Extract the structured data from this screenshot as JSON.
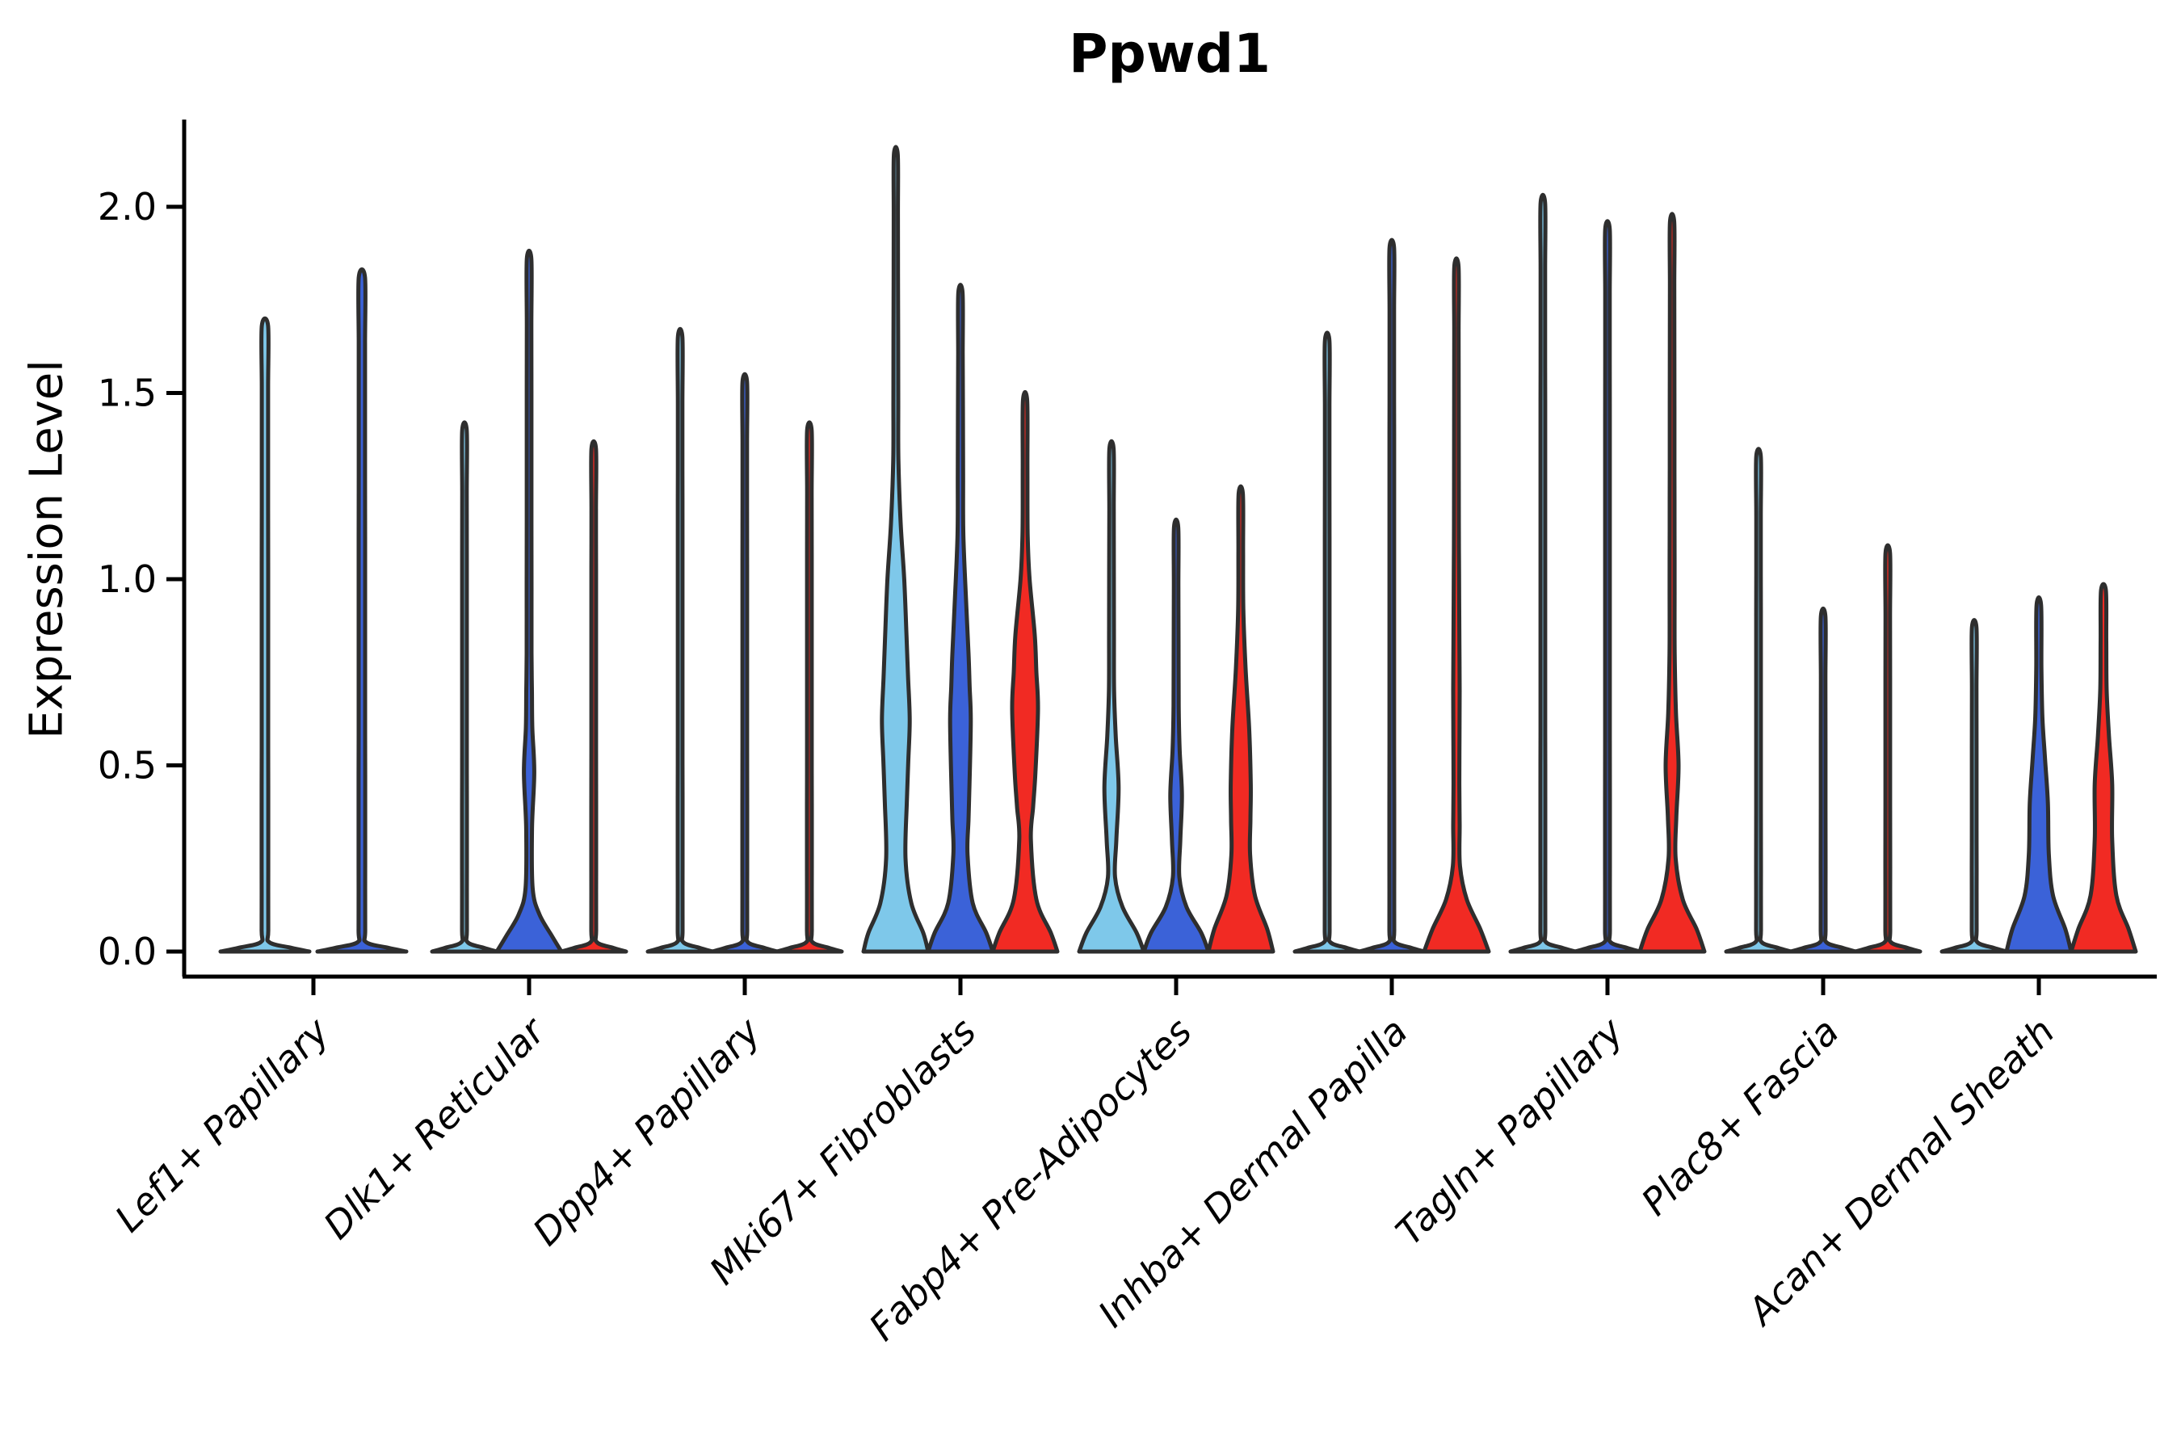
{
  "title": "Ppwd1",
  "axes": {
    "ylabel": "Expression Level",
    "ytick_labels": [
      "0.0",
      "0.5",
      "1.0",
      "1.5",
      "2.0"
    ]
  },
  "colors": {
    "background": "#ffffff",
    "axis": "#000000",
    "outline": "#2e2e2e",
    "series": [
      "#7ec8ea",
      "#3b62d8",
      "#f12a23"
    ]
  },
  "chart_data": {
    "type": "violin",
    "title": "Ppwd1",
    "xlabel": "",
    "ylabel": "Expression Level",
    "ylim": [
      -0.07,
      2.3
    ],
    "yticks": [
      0.0,
      0.5,
      1.0,
      1.5,
      2.0
    ],
    "grid": false,
    "legend": "none",
    "categories": [
      "Lef1+ Papillary",
      "Dlk1+ Reticular",
      "Dpp4+ Papillary",
      "Mki67+ Fibroblasts",
      "Fabp4+ Pre-Adipocytes",
      "Inhba+ Dermal Papilla",
      "Tagln+ Papillary",
      "Plac8+ Fascia",
      "Acan+ Dermal Sheath"
    ],
    "note": "profile = [expression_value, half_width_fraction] pairs; color = index into colors.series",
    "groups": [
      {
        "category": "Lef1+ Papillary",
        "violins": [
          {
            "color": 0,
            "max": 1.68,
            "profile": [
              [
                0,
                1.0
              ],
              [
                0.01,
                0.6
              ],
              [
                0.025,
                0.1
              ],
              [
                0.06,
                0.075
              ],
              [
                1.68,
                0.07
              ]
            ]
          },
          {
            "color": 1,
            "max": 1.81,
            "profile": [
              [
                0,
                1.0
              ],
              [
                0.01,
                0.6
              ],
              [
                0.025,
                0.1
              ],
              [
                0.06,
                0.075
              ],
              [
                1.81,
                0.07
              ]
            ]
          }
        ]
      },
      {
        "category": "Dlk1+ Reticular",
        "violins": [
          {
            "color": 0,
            "max": 1.4,
            "profile": [
              [
                0,
                1.0
              ],
              [
                0.01,
                0.6
              ],
              [
                0.025,
                0.1
              ],
              [
                0.06,
                0.075
              ],
              [
                1.4,
                0.07
              ]
            ]
          },
          {
            "color": 1,
            "max": 1.86,
            "profile": [
              [
                0,
                1.0
              ],
              [
                0.04,
                0.72
              ],
              [
                0.1,
                0.32
              ],
              [
                0.17,
                0.11
              ],
              [
                0.33,
                0.09
              ],
              [
                0.48,
                0.16
              ],
              [
                0.6,
                0.1
              ],
              [
                0.8,
                0.075
              ],
              [
                1.86,
                0.07
              ]
            ]
          },
          {
            "color": 2,
            "max": 1.35,
            "profile": [
              [
                0,
                1.0
              ],
              [
                0.01,
                0.6
              ],
              [
                0.025,
                0.1
              ],
              [
                0.06,
                0.075
              ],
              [
                1.35,
                0.07
              ]
            ]
          }
        ]
      },
      {
        "category": "Dpp4+ Papillary",
        "violins": [
          {
            "color": 0,
            "max": 1.65,
            "profile": [
              [
                0,
                1.0
              ],
              [
                0.01,
                0.6
              ],
              [
                0.025,
                0.1
              ],
              [
                0.06,
                0.075
              ],
              [
                1.65,
                0.07
              ]
            ]
          },
          {
            "color": 1,
            "max": 1.53,
            "profile": [
              [
                0,
                1.0
              ],
              [
                0.01,
                0.6
              ],
              [
                0.025,
                0.1
              ],
              [
                0.06,
                0.075
              ],
              [
                1.53,
                0.07
              ]
            ]
          },
          {
            "color": 2,
            "max": 1.4,
            "profile": [
              [
                0,
                1.0
              ],
              [
                0.01,
                0.6
              ],
              [
                0.025,
                0.1
              ],
              [
                0.06,
                0.075
              ],
              [
                1.4,
                0.07
              ]
            ]
          }
        ]
      },
      {
        "category": "Mki67+ Fibroblasts",
        "violins": [
          {
            "color": 0,
            "max": 2.14,
            "profile": [
              [
                0,
                1.0
              ],
              [
                0.05,
                0.85
              ],
              [
                0.13,
                0.48
              ],
              [
                0.25,
                0.3
              ],
              [
                0.4,
                0.34
              ],
              [
                0.62,
                0.43
              ],
              [
                0.85,
                0.33
              ],
              [
                1.0,
                0.26
              ],
              [
                1.15,
                0.15
              ],
              [
                1.32,
                0.08
              ],
              [
                2.14,
                0.06
              ]
            ]
          },
          {
            "color": 1,
            "max": 1.77,
            "profile": [
              [
                0,
                1.0
              ],
              [
                0.05,
                0.8
              ],
              [
                0.13,
                0.38
              ],
              [
                0.26,
                0.22
              ],
              [
                0.45,
                0.28
              ],
              [
                0.62,
                0.32
              ],
              [
                0.8,
                0.25
              ],
              [
                0.95,
                0.17
              ],
              [
                1.12,
                0.09
              ],
              [
                1.77,
                0.065
              ]
            ]
          },
          {
            "color": 2,
            "max": 1.48,
            "profile": [
              [
                0,
                1.0
              ],
              [
                0.05,
                0.8
              ],
              [
                0.14,
                0.35
              ],
              [
                0.3,
                0.18
              ],
              [
                0.48,
                0.32
              ],
              [
                0.65,
                0.4
              ],
              [
                0.85,
                0.3
              ],
              [
                1.0,
                0.14
              ],
              [
                1.12,
                0.08
              ],
              [
                1.48,
                0.065
              ]
            ]
          }
        ]
      },
      {
        "category": "Fabp4+ Pre-Adipocytes",
        "violins": [
          {
            "color": 0,
            "max": 1.35,
            "profile": [
              [
                0,
                1.0
              ],
              [
                0.05,
                0.78
              ],
              [
                0.12,
                0.34
              ],
              [
                0.2,
                0.11
              ],
              [
                0.3,
                0.15
              ],
              [
                0.44,
                0.22
              ],
              [
                0.58,
                0.13
              ],
              [
                0.7,
                0.08
              ],
              [
                1.35,
                0.065
              ]
            ]
          },
          {
            "color": 1,
            "max": 1.14,
            "profile": [
              [
                0,
                1.0
              ],
              [
                0.05,
                0.78
              ],
              [
                0.12,
                0.32
              ],
              [
                0.2,
                0.1
              ],
              [
                0.3,
                0.13
              ],
              [
                0.42,
                0.18
              ],
              [
                0.54,
                0.11
              ],
              [
                0.66,
                0.08
              ],
              [
                1.14,
                0.065
              ]
            ]
          },
          {
            "color": 2,
            "max": 1.23,
            "profile": [
              [
                0,
                1.0
              ],
              [
                0.06,
                0.82
              ],
              [
                0.15,
                0.44
              ],
              [
                0.26,
                0.29
              ],
              [
                0.45,
                0.31
              ],
              [
                0.6,
                0.26
              ],
              [
                0.76,
                0.15
              ],
              [
                0.92,
                0.08
              ],
              [
                1.23,
                0.065
              ]
            ]
          }
        ]
      },
      {
        "category": "Inhba+ Dermal Papilla",
        "violins": [
          {
            "color": 0,
            "max": 1.64,
            "profile": [
              [
                0,
                1.0
              ],
              [
                0.01,
                0.6
              ],
              [
                0.025,
                0.1
              ],
              [
                0.06,
                0.075
              ],
              [
                1.64,
                0.07
              ]
            ]
          },
          {
            "color": 1,
            "max": 1.89,
            "profile": [
              [
                0,
                1.0
              ],
              [
                0.01,
                0.6
              ],
              [
                0.025,
                0.1
              ],
              [
                0.06,
                0.075
              ],
              [
                1.89,
                0.07
              ]
            ]
          },
          {
            "color": 2,
            "max": 1.84,
            "profile": [
              [
                0,
                1.0
              ],
              [
                0.06,
                0.74
              ],
              [
                0.14,
                0.32
              ],
              [
                0.23,
                0.11
              ],
              [
                0.45,
                0.09
              ],
              [
                0.7,
                0.1
              ],
              [
                0.95,
                0.085
              ],
              [
                1.15,
                0.075
              ],
              [
                1.84,
                0.065
              ]
            ]
          }
        ]
      },
      {
        "category": "Tagln+ Papillary",
        "violins": [
          {
            "color": 0,
            "max": 2.01,
            "profile": [
              [
                0,
                1.0
              ],
              [
                0.01,
                0.6
              ],
              [
                0.025,
                0.1
              ],
              [
                0.06,
                0.075
              ],
              [
                2.01,
                0.07
              ]
            ]
          },
          {
            "color": 1,
            "max": 1.94,
            "profile": [
              [
                0,
                1.0
              ],
              [
                0.01,
                0.6
              ],
              [
                0.025,
                0.1
              ],
              [
                0.06,
                0.075
              ],
              [
                1.94,
                0.07
              ]
            ]
          },
          {
            "color": 2,
            "max": 1.96,
            "profile": [
              [
                0,
                1.0
              ],
              [
                0.06,
                0.76
              ],
              [
                0.14,
                0.33
              ],
              [
                0.25,
                0.11
              ],
              [
                0.36,
                0.13
              ],
              [
                0.5,
                0.2
              ],
              [
                0.64,
                0.12
              ],
              [
                0.8,
                0.08
              ],
              [
                1.96,
                0.065
              ]
            ]
          }
        ]
      },
      {
        "category": "Plac8+ Fascia",
        "violins": [
          {
            "color": 0,
            "max": 1.33,
            "profile": [
              [
                0,
                1.0
              ],
              [
                0.01,
                0.6
              ],
              [
                0.025,
                0.1
              ],
              [
                0.06,
                0.075
              ],
              [
                1.33,
                0.07
              ]
            ]
          },
          {
            "color": 1,
            "max": 0.9,
            "profile": [
              [
                0,
                1.0
              ],
              [
                0.01,
                0.6
              ],
              [
                0.025,
                0.1
              ],
              [
                0.06,
                0.075
              ],
              [
                0.9,
                0.07
              ]
            ]
          },
          {
            "color": 2,
            "max": 1.07,
            "profile": [
              [
                0,
                1.0
              ],
              [
                0.01,
                0.6
              ],
              [
                0.025,
                0.1
              ],
              [
                0.06,
                0.075
              ],
              [
                1.07,
                0.07
              ]
            ]
          }
        ]
      },
      {
        "category": "Acan+ Dermal Sheath",
        "violins": [
          {
            "color": 0,
            "max": 0.87,
            "profile": [
              [
                0,
                1.0
              ],
              [
                0.01,
                0.6
              ],
              [
                0.025,
                0.1
              ],
              [
                0.06,
                0.075
              ],
              [
                0.87,
                0.07
              ]
            ]
          },
          {
            "color": 1,
            "max": 0.93,
            "profile": [
              [
                0,
                1.0
              ],
              [
                0.06,
                0.82
              ],
              [
                0.15,
                0.44
              ],
              [
                0.26,
                0.31
              ],
              [
                0.4,
                0.28
              ],
              [
                0.52,
                0.19
              ],
              [
                0.63,
                0.11
              ],
              [
                0.76,
                0.08
              ],
              [
                0.93,
                0.07
              ]
            ]
          },
          {
            "color": 2,
            "max": 0.97,
            "profile": [
              [
                0,
                1.0
              ],
              [
                0.06,
                0.78
              ],
              [
                0.15,
                0.4
              ],
              [
                0.3,
                0.27
              ],
              [
                0.45,
                0.27
              ],
              [
                0.58,
                0.17
              ],
              [
                0.7,
                0.1
              ],
              [
                0.97,
                0.075
              ]
            ]
          }
        ]
      }
    ]
  }
}
